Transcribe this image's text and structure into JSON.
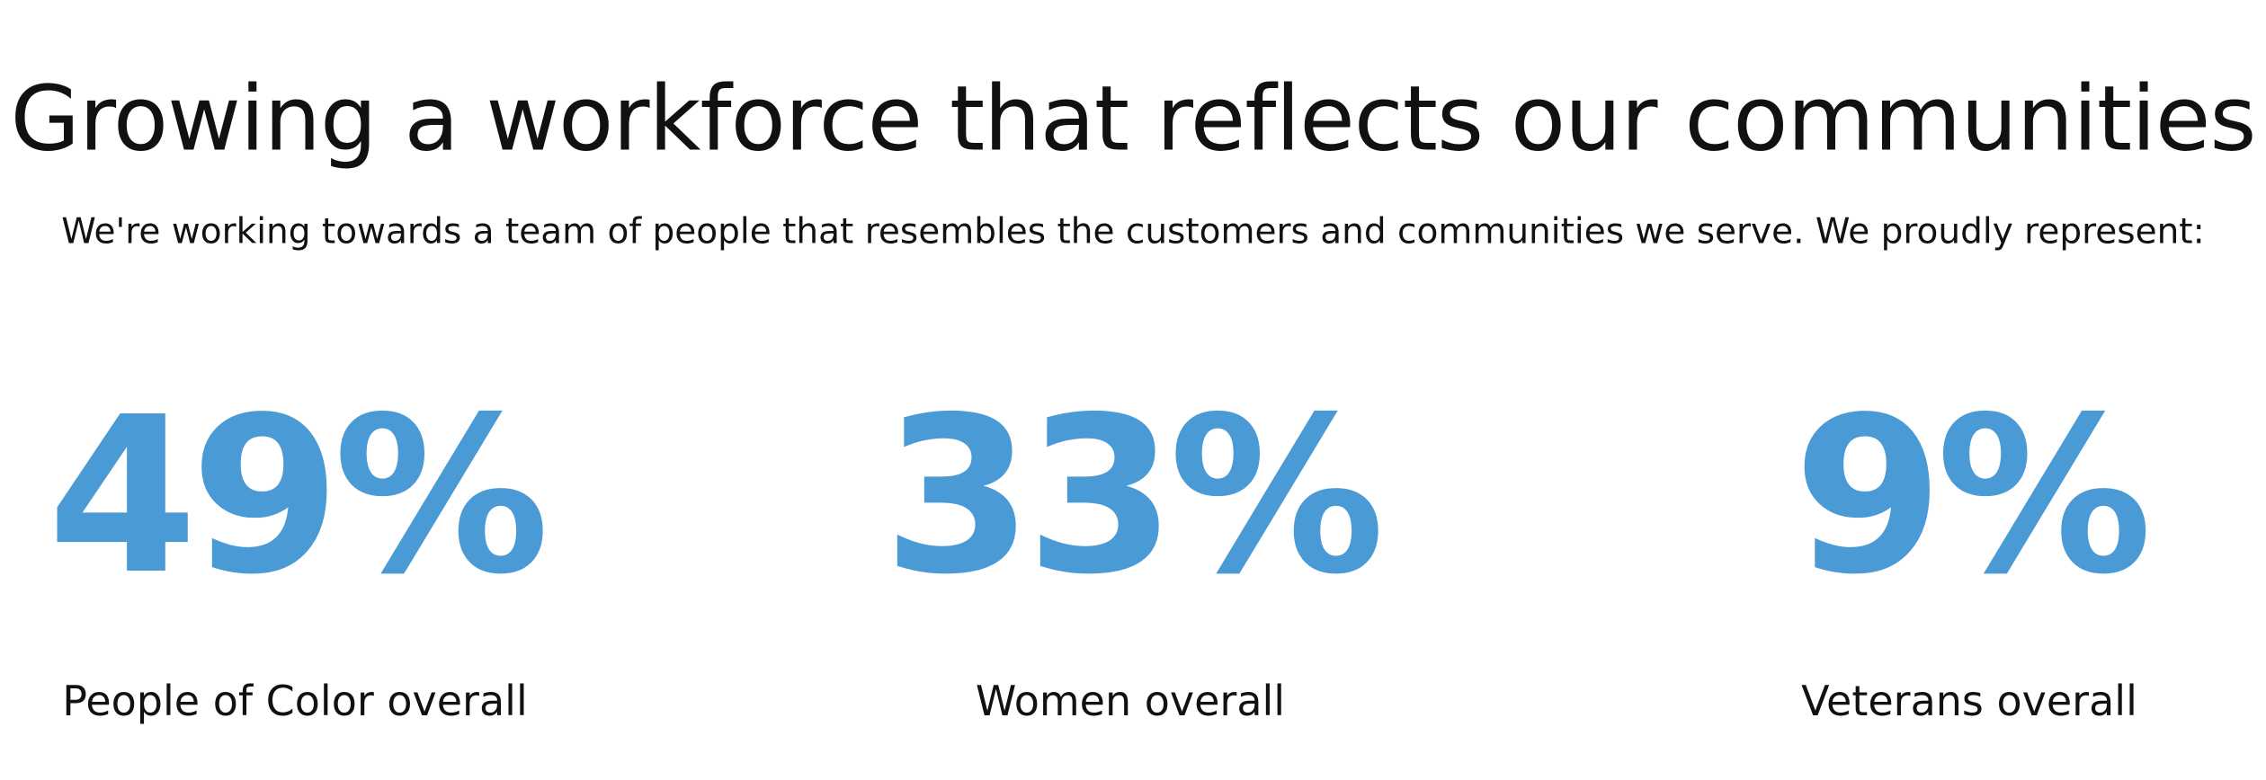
{
  "header": {
    "title": "Growing a workforce that reflects our communities",
    "subtitle": "We're working towards a team of people that resembles the customers and communities we serve. We proudly represent:"
  },
  "stats": [
    {
      "value": "49%",
      "label": "People of Color overall"
    },
    {
      "value": "33%",
      "label": "Women overall"
    },
    {
      "value": "9%",
      "label": "Veterans overall"
    }
  ]
}
